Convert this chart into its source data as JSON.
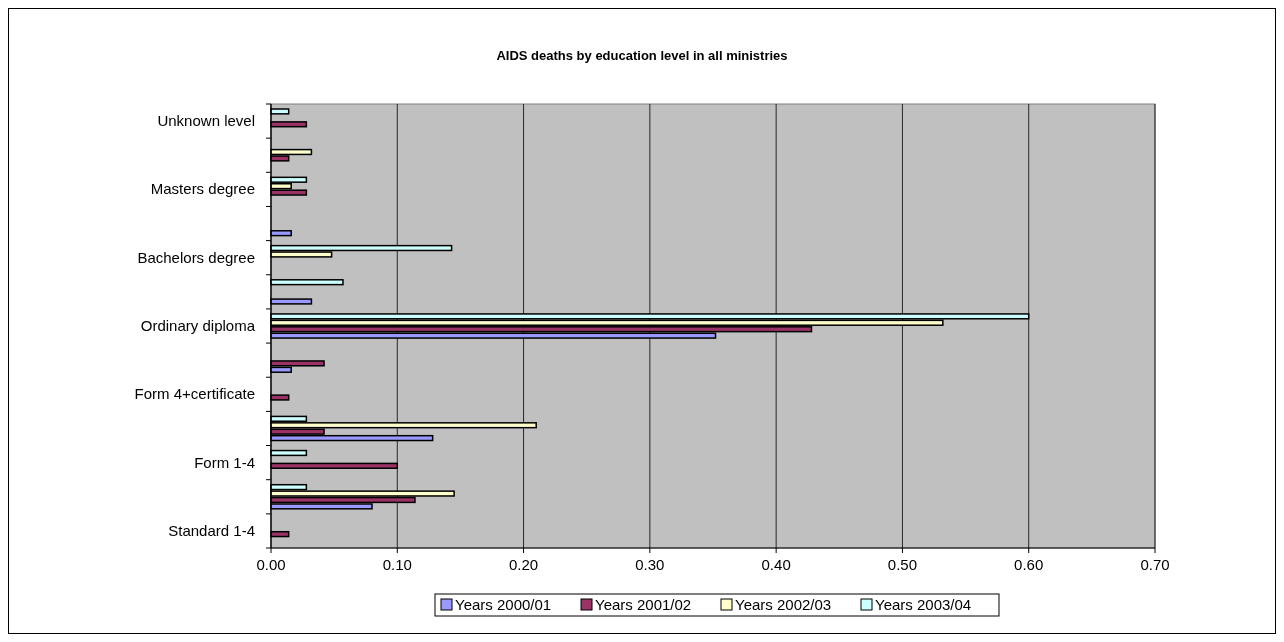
{
  "chart_data": {
    "type": "bar",
    "orientation": "horizontal",
    "title": "AIDS deaths by education level in all ministries",
    "categories": [
      "Unknown level",
      null,
      "Masters degree",
      null,
      "Bachelors degree",
      null,
      "Ordinary diploma",
      null,
      "Form 4+certificate",
      null,
      "Form 1-4",
      null,
      "Standard 1-4"
    ],
    "series": [
      {
        "name": "Years 2000/01",
        "color": "#9999ff",
        "values": [
          null,
          null,
          null,
          0.016,
          null,
          0.032,
          0.352,
          0.016,
          null,
          0.128,
          null,
          0.08,
          null
        ]
      },
      {
        "name": "Years 2001/02",
        "color": "#993366",
        "values": [
          0.028,
          0.014,
          0.028,
          null,
          null,
          null,
          0.428,
          0.042,
          0.014,
          0.042,
          0.1,
          0.114,
          0.014
        ]
      },
      {
        "name": "Years 2002/03",
        "color": "#ffffcc",
        "values": [
          null,
          0.032,
          0.016,
          null,
          0.048,
          null,
          0.532,
          null,
          null,
          0.21,
          null,
          0.145,
          null
        ]
      },
      {
        "name": "Years 2003/04",
        "color": "#ccffff",
        "values": [
          0.014,
          null,
          0.028,
          null,
          0.143,
          0.057,
          0.6,
          null,
          null,
          0.028,
          0.028,
          0.028,
          null
        ]
      }
    ],
    "xlim": [
      0,
      0.7
    ],
    "xticks": [
      {
        "value": 0,
        "label": "0.00"
      },
      {
        "value": 0.1,
        "label": "0.10"
      },
      {
        "value": 0.2,
        "label": "0.20"
      },
      {
        "value": 0.3,
        "label": "0.30"
      },
      {
        "value": 0.4,
        "label": "0.40"
      },
      {
        "value": 0.5,
        "label": "0.50"
      },
      {
        "value": 0.6,
        "label": "0.60"
      },
      {
        "value": 0.7,
        "label": "0.70"
      }
    ],
    "grid": "x",
    "legend": "bottom"
  }
}
